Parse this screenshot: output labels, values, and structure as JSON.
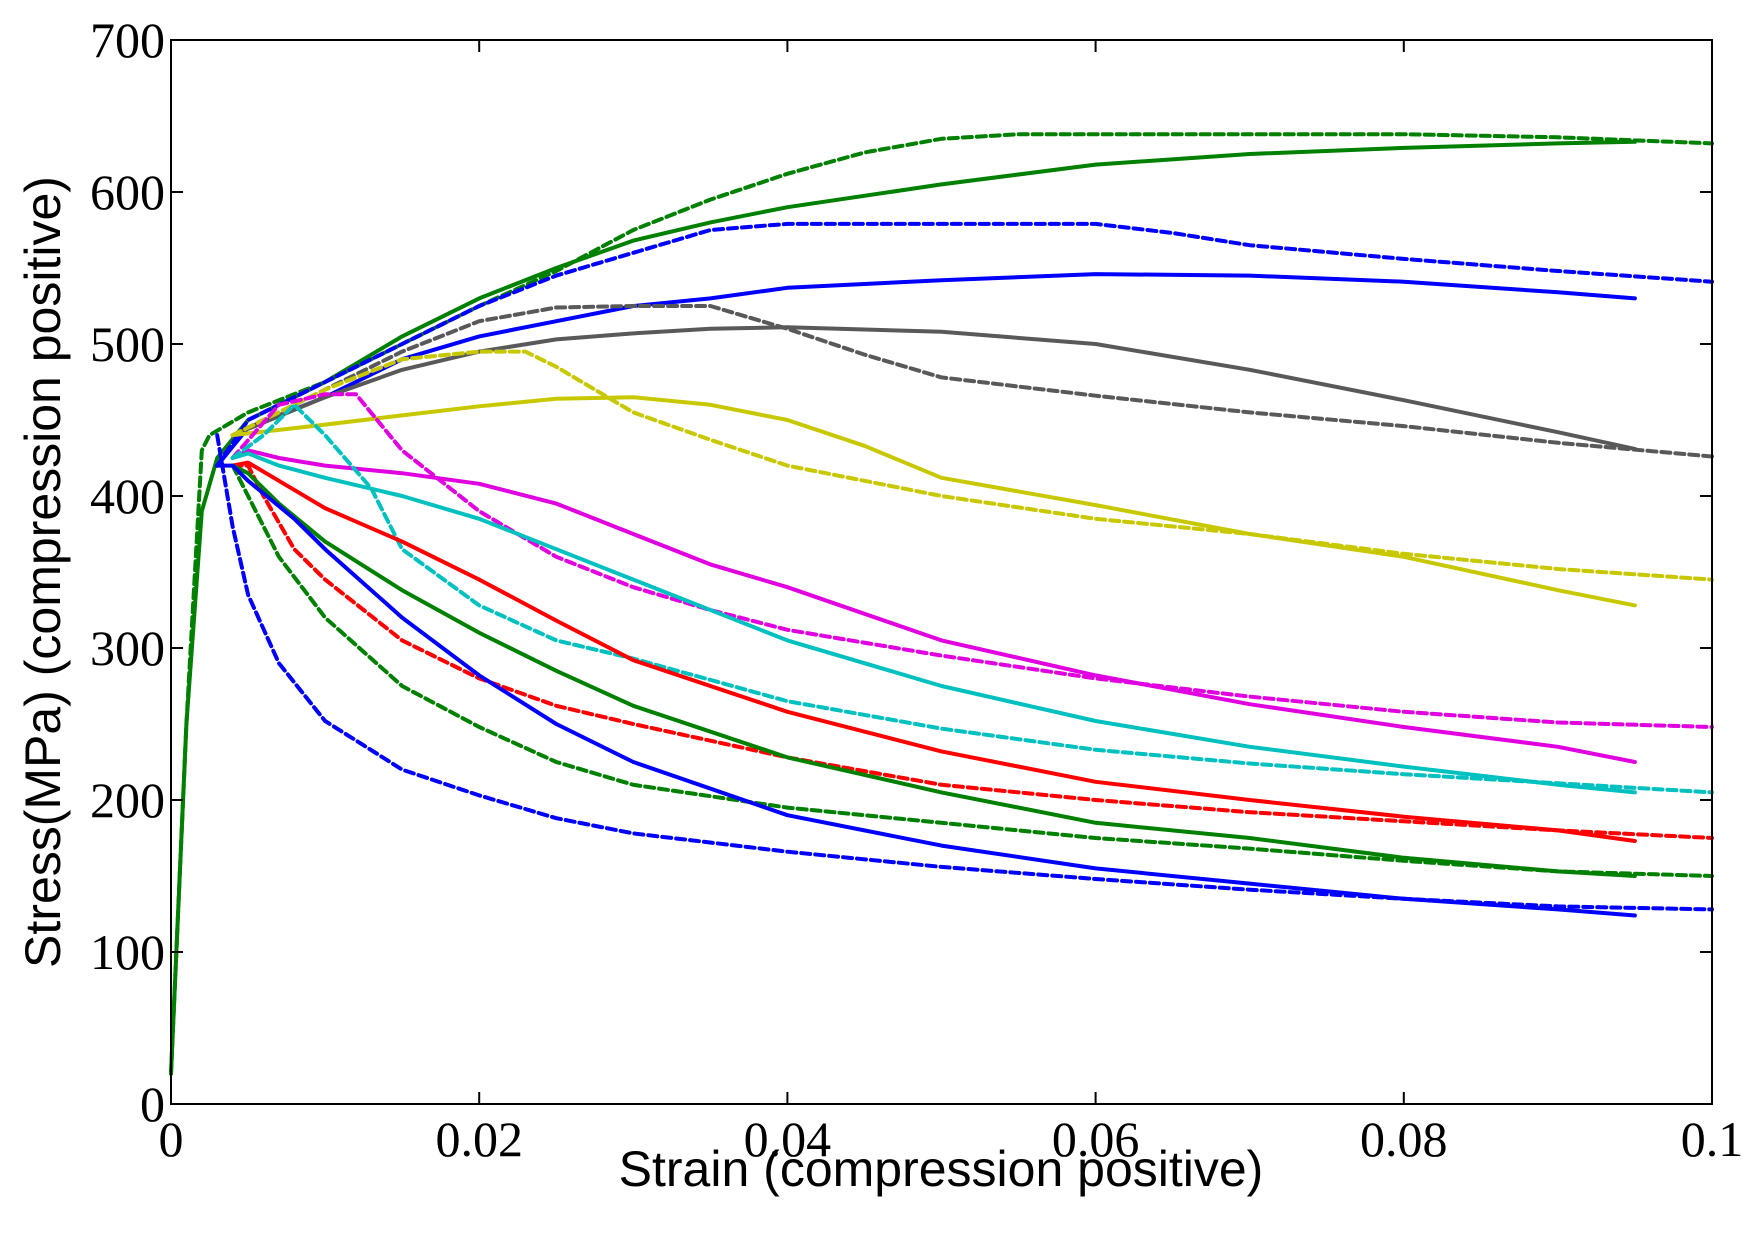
{
  "chart_data": {
    "type": "line",
    "title": "",
    "xlabel": "Strain (compression positive)",
    "ylabel": "Stress(MPa) (compression positive)",
    "xlim": [
      0,
      0.1
    ],
    "ylim": [
      0,
      700
    ],
    "xticks": [
      0,
      0.02,
      0.04,
      0.06,
      0.08,
      0.1
    ],
    "xtick_labels": [
      "0",
      "0.02",
      "0.04",
      "0.06",
      "0.08",
      "0.1"
    ],
    "yticks": [
      0,
      100,
      200,
      300,
      400,
      500,
      600,
      700
    ],
    "ytick_labels": [
      "0",
      "100",
      "200",
      "300",
      "400",
      "500",
      "600",
      "700"
    ],
    "grid": false,
    "legend": "none",
    "series": [
      {
        "name": "green-solid-upper",
        "color": "#008000",
        "dash": "solid",
        "points": [
          [
            0,
            20
          ],
          [
            0.001,
            250
          ],
          [
            0.002,
            390
          ],
          [
            0.003,
            425
          ],
          [
            0.005,
            450
          ],
          [
            0.01,
            475
          ],
          [
            0.015,
            505
          ],
          [
            0.02,
            530
          ],
          [
            0.025,
            550
          ],
          [
            0.03,
            568
          ],
          [
            0.035,
            580
          ],
          [
            0.04,
            590
          ],
          [
            0.05,
            605
          ],
          [
            0.06,
            618
          ],
          [
            0.07,
            625
          ],
          [
            0.08,
            629
          ],
          [
            0.09,
            632
          ],
          [
            0.095,
            633
          ]
        ]
      },
      {
        "name": "green-dash-upper",
        "color": "#008000",
        "dash": "dashed",
        "points": [
          [
            0,
            20
          ],
          [
            0.001,
            250
          ],
          [
            0.002,
            430
          ],
          [
            0.0025,
            440
          ],
          [
            0.005,
            455
          ],
          [
            0.01,
            475
          ],
          [
            0.015,
            500
          ],
          [
            0.02,
            525
          ],
          [
            0.025,
            548
          ],
          [
            0.03,
            575
          ],
          [
            0.035,
            595
          ],
          [
            0.04,
            612
          ],
          [
            0.045,
            626
          ],
          [
            0.05,
            635
          ],
          [
            0.055,
            638
          ],
          [
            0.06,
            638
          ],
          [
            0.07,
            638
          ],
          [
            0.08,
            638
          ],
          [
            0.09,
            636
          ],
          [
            0.1,
            632
          ]
        ]
      },
      {
        "name": "blue-dash-upper",
        "color": "#0000ff",
        "dash": "dashed",
        "points": [
          [
            0.003,
            420
          ],
          [
            0.005,
            450
          ],
          [
            0.01,
            475
          ],
          [
            0.015,
            500
          ],
          [
            0.02,
            525
          ],
          [
            0.025,
            545
          ],
          [
            0.03,
            560
          ],
          [
            0.035,
            575
          ],
          [
            0.04,
            579
          ],
          [
            0.05,
            579
          ],
          [
            0.06,
            579
          ],
          [
            0.065,
            573
          ],
          [
            0.07,
            565
          ],
          [
            0.08,
            556
          ],
          [
            0.09,
            548
          ],
          [
            0.1,
            541
          ]
        ]
      },
      {
        "name": "blue-solid-upper",
        "color": "#0000ff",
        "dash": "solid",
        "points": [
          [
            0.003,
            420
          ],
          [
            0.005,
            445
          ],
          [
            0.01,
            465
          ],
          [
            0.015,
            490
          ],
          [
            0.02,
            505
          ],
          [
            0.025,
            515
          ],
          [
            0.03,
            525
          ],
          [
            0.035,
            530
          ],
          [
            0.04,
            537
          ],
          [
            0.05,
            542
          ],
          [
            0.06,
            546
          ],
          [
            0.07,
            545
          ],
          [
            0.08,
            541
          ],
          [
            0.09,
            534
          ],
          [
            0.095,
            530
          ]
        ]
      },
      {
        "name": "gray-dash",
        "color": "#595959",
        "dash": "dashed",
        "points": [
          [
            0.004,
            440
          ],
          [
            0.01,
            470
          ],
          [
            0.015,
            495
          ],
          [
            0.02,
            515
          ],
          [
            0.025,
            524
          ],
          [
            0.03,
            525
          ],
          [
            0.035,
            525
          ],
          [
            0.04,
            510
          ],
          [
            0.045,
            493
          ],
          [
            0.05,
            478
          ],
          [
            0.06,
            466
          ],
          [
            0.07,
            455
          ],
          [
            0.08,
            446
          ],
          [
            0.09,
            435
          ],
          [
            0.1,
            426
          ]
        ]
      },
      {
        "name": "gray-solid",
        "color": "#595959",
        "dash": "solid",
        "points": [
          [
            0.004,
            440
          ],
          [
            0.01,
            465
          ],
          [
            0.015,
            483
          ],
          [
            0.02,
            495
          ],
          [
            0.025,
            503
          ],
          [
            0.03,
            507
          ],
          [
            0.035,
            510
          ],
          [
            0.04,
            511
          ],
          [
            0.05,
            508
          ],
          [
            0.06,
            500
          ],
          [
            0.07,
            483
          ],
          [
            0.08,
            463
          ],
          [
            0.09,
            442
          ],
          [
            0.095,
            431
          ]
        ]
      },
      {
        "name": "yellow-dash",
        "color": "#c8c800",
        "dash": "dashed",
        "points": [
          [
            0.004,
            440
          ],
          [
            0.01,
            470
          ],
          [
            0.015,
            490
          ],
          [
            0.02,
            495
          ],
          [
            0.023,
            495
          ],
          [
            0.025,
            485
          ],
          [
            0.03,
            455
          ],
          [
            0.035,
            437
          ],
          [
            0.04,
            420
          ],
          [
            0.05,
            400
          ],
          [
            0.06,
            385
          ],
          [
            0.07,
            375
          ],
          [
            0.08,
            362
          ],
          [
            0.09,
            352
          ],
          [
            0.1,
            345
          ]
        ]
      },
      {
        "name": "yellow-solid",
        "color": "#c8c800",
        "dash": "solid",
        "points": [
          [
            0.004,
            440
          ],
          [
            0.01,
            447
          ],
          [
            0.015,
            453
          ],
          [
            0.02,
            459
          ],
          [
            0.025,
            464
          ],
          [
            0.03,
            465
          ],
          [
            0.035,
            460
          ],
          [
            0.04,
            450
          ],
          [
            0.045,
            433
          ],
          [
            0.05,
            412
          ],
          [
            0.06,
            394
          ],
          [
            0.07,
            375
          ],
          [
            0.08,
            360
          ],
          [
            0.09,
            338
          ],
          [
            0.095,
            328
          ]
        ]
      },
      {
        "name": "magenta-dash",
        "color": "#e000e0",
        "dash": "dashed",
        "points": [
          [
            0.004,
            425
          ],
          [
            0.007,
            460
          ],
          [
            0.01,
            467
          ],
          [
            0.012,
            467
          ],
          [
            0.015,
            430
          ],
          [
            0.02,
            390
          ],
          [
            0.025,
            360
          ],
          [
            0.03,
            340
          ],
          [
            0.035,
            325
          ],
          [
            0.04,
            312
          ],
          [
            0.05,
            295
          ],
          [
            0.06,
            280
          ],
          [
            0.07,
            268
          ],
          [
            0.08,
            258
          ],
          [
            0.09,
            251
          ],
          [
            0.1,
            248
          ]
        ]
      },
      {
        "name": "magenta-solid",
        "color": "#e000e0",
        "dash": "solid",
        "points": [
          [
            0.004,
            425
          ],
          [
            0.005,
            430
          ],
          [
            0.007,
            425
          ],
          [
            0.01,
            420
          ],
          [
            0.015,
            415
          ],
          [
            0.02,
            408
          ],
          [
            0.025,
            395
          ],
          [
            0.03,
            375
          ],
          [
            0.035,
            355
          ],
          [
            0.04,
            340
          ],
          [
            0.05,
            305
          ],
          [
            0.06,
            282
          ],
          [
            0.07,
            263
          ],
          [
            0.08,
            248
          ],
          [
            0.09,
            235
          ],
          [
            0.095,
            225
          ]
        ]
      },
      {
        "name": "cyan-dash",
        "color": "#00c0c0",
        "dash": "dashed",
        "points": [
          [
            0.004,
            425
          ],
          [
            0.006,
            440
          ],
          [
            0.008,
            460
          ],
          [
            0.01,
            440
          ],
          [
            0.013,
            405
          ],
          [
            0.015,
            365
          ],
          [
            0.02,
            328
          ],
          [
            0.025,
            305
          ],
          [
            0.03,
            293
          ],
          [
            0.04,
            265
          ],
          [
            0.05,
            247
          ],
          [
            0.06,
            233
          ],
          [
            0.07,
            224
          ],
          [
            0.08,
            217
          ],
          [
            0.09,
            211
          ],
          [
            0.1,
            205
          ]
        ]
      },
      {
        "name": "cyan-solid",
        "color": "#00c0c0",
        "dash": "solid",
        "points": [
          [
            0.004,
            425
          ],
          [
            0.005,
            428
          ],
          [
            0.007,
            420
          ],
          [
            0.01,
            412
          ],
          [
            0.015,
            400
          ],
          [
            0.02,
            385
          ],
          [
            0.025,
            365
          ],
          [
            0.03,
            345
          ],
          [
            0.04,
            305
          ],
          [
            0.05,
            275
          ],
          [
            0.06,
            252
          ],
          [
            0.07,
            235
          ],
          [
            0.08,
            222
          ],
          [
            0.09,
            210
          ],
          [
            0.095,
            205
          ]
        ]
      },
      {
        "name": "red-dash",
        "color": "#ff0000",
        "dash": "dashed",
        "points": [
          [
            0.004,
            420
          ],
          [
            0.005,
            420
          ],
          [
            0.006,
            400
          ],
          [
            0.008,
            365
          ],
          [
            0.01,
            345
          ],
          [
            0.015,
            305
          ],
          [
            0.02,
            280
          ],
          [
            0.025,
            262
          ],
          [
            0.03,
            250
          ],
          [
            0.04,
            228
          ],
          [
            0.05,
            210
          ],
          [
            0.06,
            200
          ],
          [
            0.07,
            192
          ],
          [
            0.08,
            186
          ],
          [
            0.09,
            180
          ],
          [
            0.1,
            175
          ]
        ]
      },
      {
        "name": "red-solid",
        "color": "#ff0000",
        "dash": "solid",
        "points": [
          [
            0.004,
            420
          ],
          [
            0.005,
            422
          ],
          [
            0.007,
            410
          ],
          [
            0.01,
            392
          ],
          [
            0.015,
            370
          ],
          [
            0.02,
            345
          ],
          [
            0.025,
            318
          ],
          [
            0.03,
            292
          ],
          [
            0.04,
            258
          ],
          [
            0.05,
            232
          ],
          [
            0.06,
            212
          ],
          [
            0.07,
            200
          ],
          [
            0.08,
            189
          ],
          [
            0.09,
            180
          ],
          [
            0.095,
            173
          ]
        ]
      },
      {
        "name": "green-solid-lower",
        "color": "#008000",
        "dash": "solid",
        "points": [
          [
            0.004,
            420
          ],
          [
            0.005,
            415
          ],
          [
            0.007,
            395
          ],
          [
            0.01,
            370
          ],
          [
            0.015,
            338
          ],
          [
            0.02,
            310
          ],
          [
            0.025,
            285
          ],
          [
            0.03,
            262
          ],
          [
            0.04,
            228
          ],
          [
            0.05,
            205
          ],
          [
            0.06,
            185
          ],
          [
            0.07,
            175
          ],
          [
            0.08,
            162
          ],
          [
            0.09,
            153
          ],
          [
            0.095,
            150
          ]
        ]
      },
      {
        "name": "green-dash-lower",
        "color": "#008000",
        "dash": "dashed",
        "points": [
          [
            0.004,
            420
          ],
          [
            0.005,
            400
          ],
          [
            0.007,
            360
          ],
          [
            0.01,
            320
          ],
          [
            0.015,
            275
          ],
          [
            0.02,
            248
          ],
          [
            0.025,
            225
          ],
          [
            0.03,
            210
          ],
          [
            0.04,
            195
          ],
          [
            0.05,
            185
          ],
          [
            0.06,
            175
          ],
          [
            0.07,
            168
          ],
          [
            0.08,
            160
          ],
          [
            0.09,
            153
          ],
          [
            0.1,
            150
          ]
        ]
      },
      {
        "name": "blue-solid-lower",
        "color": "#0000ff",
        "dash": "solid",
        "points": [
          [
            0.003,
            420
          ],
          [
            0.004,
            420
          ],
          [
            0.005,
            410
          ],
          [
            0.008,
            385
          ],
          [
            0.01,
            365
          ],
          [
            0.015,
            320
          ],
          [
            0.02,
            282
          ],
          [
            0.025,
            250
          ],
          [
            0.03,
            225
          ],
          [
            0.04,
            190
          ],
          [
            0.05,
            170
          ],
          [
            0.06,
            155
          ],
          [
            0.07,
            145
          ],
          [
            0.08,
            135
          ],
          [
            0.09,
            128
          ],
          [
            0.095,
            124
          ]
        ]
      },
      {
        "name": "blue-dash-lower",
        "color": "#0000ff",
        "dash": "dashed",
        "points": [
          [
            0.003,
            440
          ],
          [
            0.004,
            380
          ],
          [
            0.005,
            335
          ],
          [
            0.007,
            290
          ],
          [
            0.01,
            252
          ],
          [
            0.015,
            220
          ],
          [
            0.02,
            203
          ],
          [
            0.025,
            188
          ],
          [
            0.03,
            178
          ],
          [
            0.04,
            166
          ],
          [
            0.05,
            156
          ],
          [
            0.06,
            148
          ],
          [
            0.07,
            141
          ],
          [
            0.08,
            135
          ],
          [
            0.09,
            130
          ],
          [
            0.1,
            128
          ]
        ]
      }
    ]
  }
}
